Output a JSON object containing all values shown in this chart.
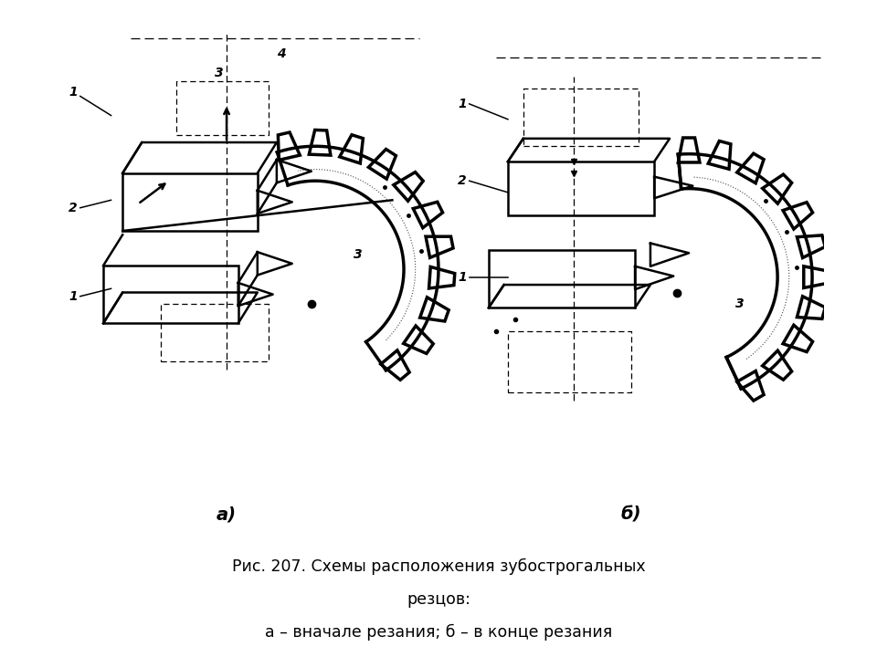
{
  "title_line1": "Рис. 207. Схемы расположения зубострогальных",
  "title_line2": "резцов:",
  "title_line3": "а – вначале резания; б – в конце резания",
  "label_a": "а)",
  "label_b": "б)",
  "bg_color": "#ffffff",
  "line_color": "#000000",
  "font_size_caption": 12.5,
  "font_size_label": 14,
  "font_size_number": 11,
  "fig_width": 9.6,
  "fig_height": 7.2,
  "dpi": 100
}
